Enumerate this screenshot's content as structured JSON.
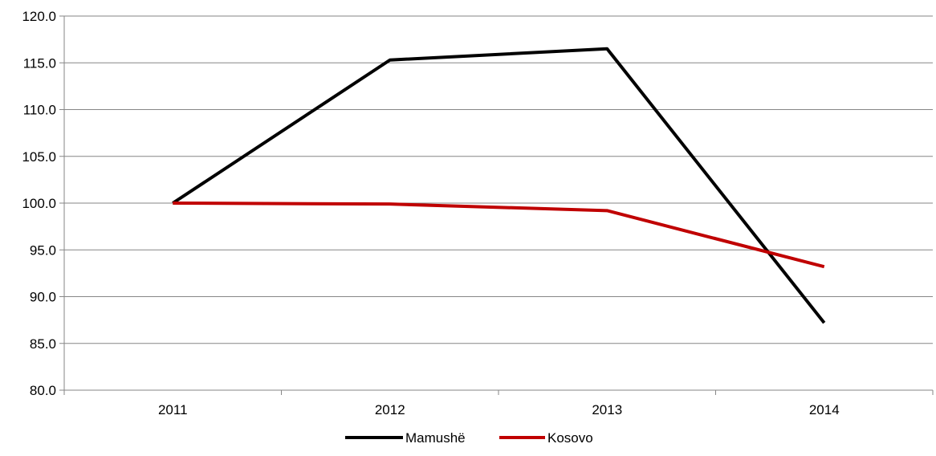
{
  "chart_data": {
    "type": "line",
    "categories": [
      "2011",
      "2012",
      "2013",
      "2014"
    ],
    "series": [
      {
        "name": "Mamushë",
        "values": [
          100.0,
          115.3,
          116.5,
          87.2
        ],
        "color": "#000000"
      },
      {
        "name": "Kosovo",
        "values": [
          100.0,
          99.9,
          99.2,
          93.2
        ],
        "color": "#c00000"
      }
    ],
    "ylim": [
      80.0,
      120.0
    ],
    "ytick_step": 5,
    "ytick_labels": [
      "80.0",
      "85.0",
      "90.0",
      "95.0",
      "100.0",
      "105.0",
      "110.0",
      "115.0",
      "120.0"
    ],
    "grid": true,
    "legend_position": "bottom",
    "gridline_color": "#868686"
  }
}
